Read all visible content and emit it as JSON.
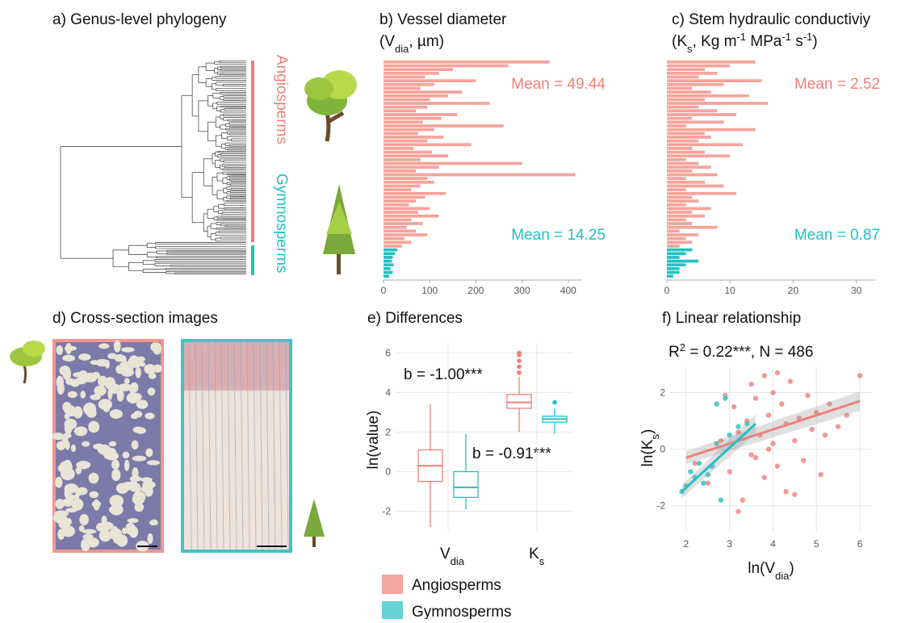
{
  "phylogeny": {
    "title": "a) Genus-level phylogeny",
    "clades": [
      {
        "name": "Angiosperms",
        "color": "#f08079"
      },
      {
        "name": "Gymnosperms",
        "color": "#22c1c3"
      }
    ]
  },
  "images": {
    "title": "d) Cross-section images"
  },
  "chart_data": [
    {
      "type": "bar",
      "orientation": "horizontal",
      "title": "b) Vessel diameter",
      "subtitle": [
        "(V",
        "dia",
        ", µm)"
      ],
      "series": [
        {
          "name": "Angiosperms",
          "color": "#f6a39b",
          "values": [
            360,
            270,
            150,
            120,
            90,
            200,
            110,
            80,
            170,
            140,
            100,
            230,
            95,
            70,
            160,
            125,
            85,
            260,
            110,
            75,
            130,
            95,
            190,
            65,
            105,
            140,
            80,
            300,
            120,
            70,
            415,
            95,
            110,
            80,
            60,
            135,
            90,
            70,
            55,
            100,
            75,
            120,
            60,
            85,
            50,
            70,
            95,
            45,
            60,
            40
          ]
        },
        {
          "name": "Gymnosperms",
          "color": "#22c1c3",
          "values": [
            30,
            25,
            20,
            18,
            22,
            15,
            20,
            12
          ]
        }
      ],
      "annotations": [
        "Mean = 49.44",
        "Mean = 14.25"
      ],
      "xlim": [
        0,
        430
      ],
      "xticks": [
        0,
        100,
        200,
        300,
        400
      ]
    },
    {
      "type": "bar",
      "orientation": "horizontal",
      "title": "c) Stem hydraulic conductiviy",
      "subtitle": [
        "(K",
        "s",
        ", Kg m",
        "-1",
        " MPa",
        "-1",
        " s",
        "-1",
        ")"
      ],
      "series": [
        {
          "name": "Angiosperms",
          "color": "#f6a39b",
          "values": [
            14,
            10,
            6,
            8,
            5,
            15,
            9,
            4,
            7,
            13,
            6,
            16,
            5,
            8,
            11,
            4,
            9,
            3,
            14,
            6,
            7,
            5,
            12,
            4,
            6,
            10,
            3,
            5,
            7,
            4,
            8,
            3,
            6,
            9,
            3,
            11,
            4,
            5,
            3,
            7,
            4,
            6,
            3,
            4,
            8,
            2,
            5,
            3,
            4,
            2
          ]
        },
        {
          "name": "Gymnosperms",
          "color": "#22c1c3",
          "values": [
            4,
            3,
            2,
            5,
            3,
            2,
            2,
            1
          ]
        }
      ],
      "annotations": [
        "Mean = 2.52",
        "Mean = 0.87"
      ],
      "xlim": [
        0,
        33
      ],
      "xticks": [
        0,
        10,
        20,
        30
      ]
    },
    {
      "type": "box",
      "title": "e) Differences",
      "ylabel": "ln(value)",
      "categories": [
        [
          "V",
          "dia"
        ],
        [
          "K",
          "s"
        ]
      ],
      "series": [
        {
          "name": "Angiosperms",
          "color": "#f08079",
          "boxes": [
            {
              "min": -2.8,
              "q1": -0.5,
              "median": 0.3,
              "q3": 1.1,
              "max": 3.4,
              "outliers": []
            },
            {
              "min": 2.0,
              "q1": 3.2,
              "median": 3.5,
              "q3": 3.9,
              "max": 4.8,
              "outliers": [
                5.0,
                5.3,
                5.6,
                5.9,
                6.0
              ]
            }
          ]
        },
        {
          "name": "Gymnosperms",
          "color": "#22c1c3",
          "boxes": [
            {
              "min": -1.9,
              "q1": -1.3,
              "median": -0.8,
              "q3": 0.0,
              "max": 1.9,
              "outliers": []
            },
            {
              "min": 1.9,
              "q1": 2.5,
              "median": 2.65,
              "q3": 2.8,
              "max": 3.2,
              "outliers": [
                3.5
              ]
            }
          ]
        }
      ],
      "annotations": [
        "b = -1.00***",
        "b = -0.91***"
      ],
      "ylim": [
        -3,
        6.5
      ],
      "yticks": [
        -2,
        0,
        2,
        4,
        6
      ],
      "grid": true
    },
    {
      "type": "scatter",
      "title": "f) Linear relationship",
      "annotation": [
        "R",
        "2",
        " = 0.22***, N = 486"
      ],
      "xlabel": [
        "ln(V",
        "dia",
        ")"
      ],
      "ylabel": [
        "ln(K",
        "s",
        ")"
      ],
      "series": [
        {
          "name": "Angiosperms",
          "color": "#f08079",
          "x": [
            2.2,
            2.5,
            2.8,
            3.0,
            3.1,
            3.2,
            3.3,
            3.4,
            3.5,
            3.5,
            3.6,
            3.7,
            3.8,
            3.8,
            3.9,
            4.0,
            4.0,
            4.1,
            4.2,
            4.3,
            4.3,
            4.4,
            4.5,
            4.6,
            4.7,
            4.8,
            4.9,
            5.0,
            5.1,
            5.2,
            5.3,
            5.5,
            5.7,
            6.0,
            3.2,
            3.6,
            4.1,
            2.9,
            4.5,
            3.9
          ],
          "y": [
            -0.5,
            -1.2,
            0.3,
            -0.8,
            1.5,
            0.6,
            -1.8,
            1.0,
            2.3,
            -0.2,
            1.8,
            0.5,
            2.6,
            -1.0,
            1.2,
            0.2,
            2.0,
            -0.6,
            1.6,
            0.9,
            -1.5,
            2.4,
            0.3,
            1.1,
            -0.4,
            1.9,
            0.7,
            1.3,
            -0.9,
            0.5,
            1.6,
            0.8,
            1.2,
            2.6,
            -2.2,
            -0.3,
            2.7,
            1.9,
            -1.6,
            0.0
          ],
          "fit": {
            "x": [
              2.0,
              6.0
            ],
            "y": [
              -0.3,
              1.7
            ]
          }
        },
        {
          "name": "Gymnosperms",
          "color": "#22c1c3",
          "x": [
            1.9,
            2.0,
            2.1,
            2.2,
            2.3,
            2.4,
            2.5,
            2.6,
            2.7,
            2.8,
            2.9,
            3.0,
            3.2,
            3.4,
            2.7
          ],
          "y": [
            -1.5,
            -1.3,
            -0.8,
            -1.0,
            -0.5,
            -1.2,
            -0.9,
            -0.6,
            0.2,
            -1.8,
            1.8,
            0.5,
            0.8,
            0.9,
            1.6
          ],
          "fit": {
            "x": [
              1.9,
              3.6
            ],
            "y": [
              -1.5,
              0.9
            ]
          }
        }
      ],
      "xlim": [
        1.63,
        6.28
      ],
      "ylim": [
        -2.95,
        2.9
      ],
      "xticks": [
        2,
        3,
        4,
        5,
        6
      ],
      "yticks": [
        -2,
        0,
        2
      ],
      "grid": true
    }
  ]
}
